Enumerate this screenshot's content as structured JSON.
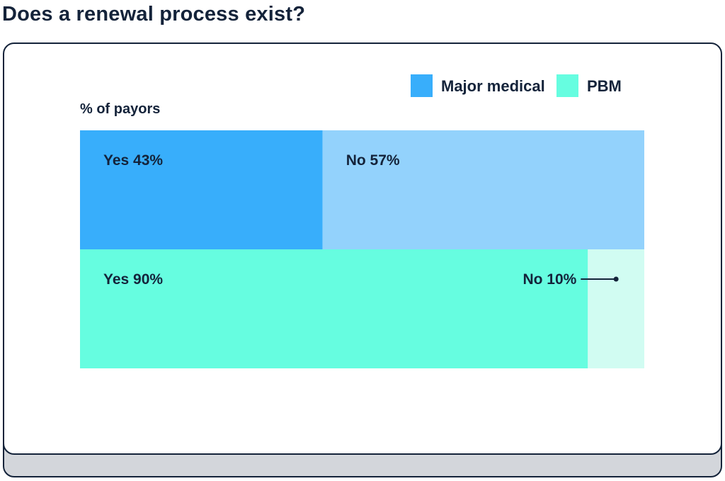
{
  "title": "Does a renewal process exist?",
  "chart_data": {
    "type": "bar",
    "orientation": "horizontal",
    "stacked": true,
    "percent_scale": [
      0,
      100
    ],
    "axis_caption": "% of payors",
    "legend": {
      "position": "top-right",
      "items": [
        {
          "name": "Major medical",
          "color": "#38aefb"
        },
        {
          "name": "PBM",
          "color": "#66fde0"
        }
      ]
    },
    "bars": [
      {
        "category": "Major medical",
        "segments": [
          {
            "label": "Yes",
            "value": 43,
            "text": "Yes 43%",
            "color": "#38aefb"
          },
          {
            "label": "No",
            "value": 57,
            "text": "No 57%",
            "color": "#93d2fc"
          }
        ]
      },
      {
        "category": "PBM",
        "segments": [
          {
            "label": "Yes",
            "value": 90,
            "text": "Yes 90%",
            "color": "#66fde0"
          },
          {
            "label": "No",
            "value": 10,
            "text": "No 10%",
            "color": "#d1fcf2"
          }
        ]
      }
    ],
    "grid": false
  }
}
